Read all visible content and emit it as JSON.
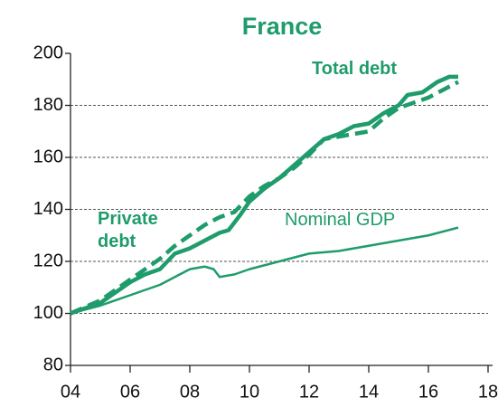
{
  "chart_data": {
    "type": "line",
    "title": "France",
    "xlim": [
      2004,
      2018
    ],
    "xticks": [
      {
        "value": 2004,
        "label": "04"
      },
      {
        "value": 2006,
        "label": "06"
      },
      {
        "value": 2008,
        "label": "08"
      },
      {
        "value": 2010,
        "label": "10"
      },
      {
        "value": 2012,
        "label": "12"
      },
      {
        "value": 2014,
        "label": "14"
      },
      {
        "value": 2016,
        "label": "16"
      },
      {
        "value": 2018,
        "label": "18"
      }
    ],
    "ylim": [
      80,
      200
    ],
    "yticks": [
      80,
      100,
      120,
      140,
      160,
      180,
      200
    ],
    "grid": true,
    "series": [
      {
        "name": "Total debt",
        "color": "#1f9c6b",
        "style": "solid",
        "x": [
          2004,
          2004.5,
          2005,
          2005.5,
          2006,
          2006.5,
          2007,
          2007.5,
          2008,
          2008.5,
          2009,
          2009.3,
          2009.7,
          2010,
          2010.5,
          2011,
          2011.5,
          2012,
          2012.5,
          2013,
          2013.5,
          2014,
          2014.5,
          2015,
          2015.3,
          2015.8,
          2016.3,
          2016.7,
          2017
        ],
        "values": [
          100,
          102,
          104,
          108,
          112,
          115,
          117,
          123,
          125,
          128,
          131,
          132,
          138,
          143,
          148,
          152,
          157,
          162,
          167,
          169,
          172,
          173,
          177,
          180,
          184,
          185,
          189,
          191,
          191
        ]
      },
      {
        "name": "Private debt",
        "color": "#1f9c6b",
        "style": "dashed",
        "x": [
          2004,
          2005,
          2006,
          2007,
          2007.5,
          2008,
          2008.5,
          2009,
          2009.5,
          2010,
          2010.5,
          2011,
          2011.5,
          2012,
          2012.5,
          2013,
          2014,
          2014.5,
          2015,
          2015.5,
          2016,
          2016.5,
          2017
        ],
        "values": [
          100,
          105,
          113,
          121,
          126,
          130,
          134,
          137,
          139,
          145,
          149,
          152,
          156,
          161,
          167,
          168,
          170,
          175,
          179,
          181,
          183,
          186,
          189
        ]
      },
      {
        "name": "Nominal GDP",
        "color": "#1f9c6b",
        "style": "thin",
        "x": [
          2004,
          2005,
          2006,
          2007,
          2007.5,
          2008,
          2008.5,
          2008.8,
          2009,
          2009.5,
          2010,
          2011,
          2012,
          2013,
          2014,
          2015,
          2016,
          2017
        ],
        "values": [
          100,
          103,
          107,
          111,
          114,
          117,
          118,
          117,
          114,
          115,
          117,
          120,
          123,
          124,
          126,
          128,
          130,
          133
        ]
      }
    ]
  }
}
